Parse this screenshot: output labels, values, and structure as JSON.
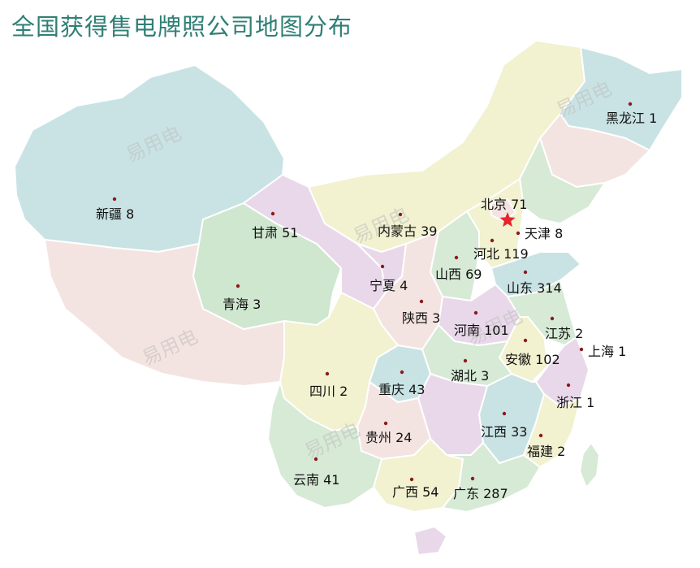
{
  "title": "全国获得售电牌照公司地图分布",
  "watermark": "易用电",
  "capital_marker": "red-star-icon",
  "colors": {
    "title": "#2f7f76",
    "dot": "#8b1a1a",
    "star": "#e3262b"
  },
  "provinces": [
    {
      "name": "黑龙江",
      "count": 1
    },
    {
      "name": "新疆",
      "count": 8
    },
    {
      "name": "北京",
      "count": 71
    },
    {
      "name": "甘肃",
      "count": 51
    },
    {
      "name": "内蒙古",
      "count": 39
    },
    {
      "name": "天津",
      "count": 8
    },
    {
      "name": "河北",
      "count": 119
    },
    {
      "name": "山西",
      "count": 69
    },
    {
      "name": "宁夏",
      "count": 4
    },
    {
      "name": "山东",
      "count": 314
    },
    {
      "name": "青海",
      "count": 3
    },
    {
      "name": "陕西",
      "count": 3
    },
    {
      "name": "河南",
      "count": 101
    },
    {
      "name": "江苏",
      "count": 2
    },
    {
      "name": "上海",
      "count": 1
    },
    {
      "name": "安徽",
      "count": 102
    },
    {
      "name": "湖北",
      "count": 3
    },
    {
      "name": "四川",
      "count": 2
    },
    {
      "name": "重庆",
      "count": 43
    },
    {
      "name": "浙江",
      "count": 1
    },
    {
      "name": "江西",
      "count": 33
    },
    {
      "name": "贵州",
      "count": 24
    },
    {
      "name": "福建",
      "count": 2
    },
    {
      "name": "云南",
      "count": 41
    },
    {
      "name": "广西",
      "count": 54
    },
    {
      "name": "广东",
      "count": 287
    }
  ]
}
